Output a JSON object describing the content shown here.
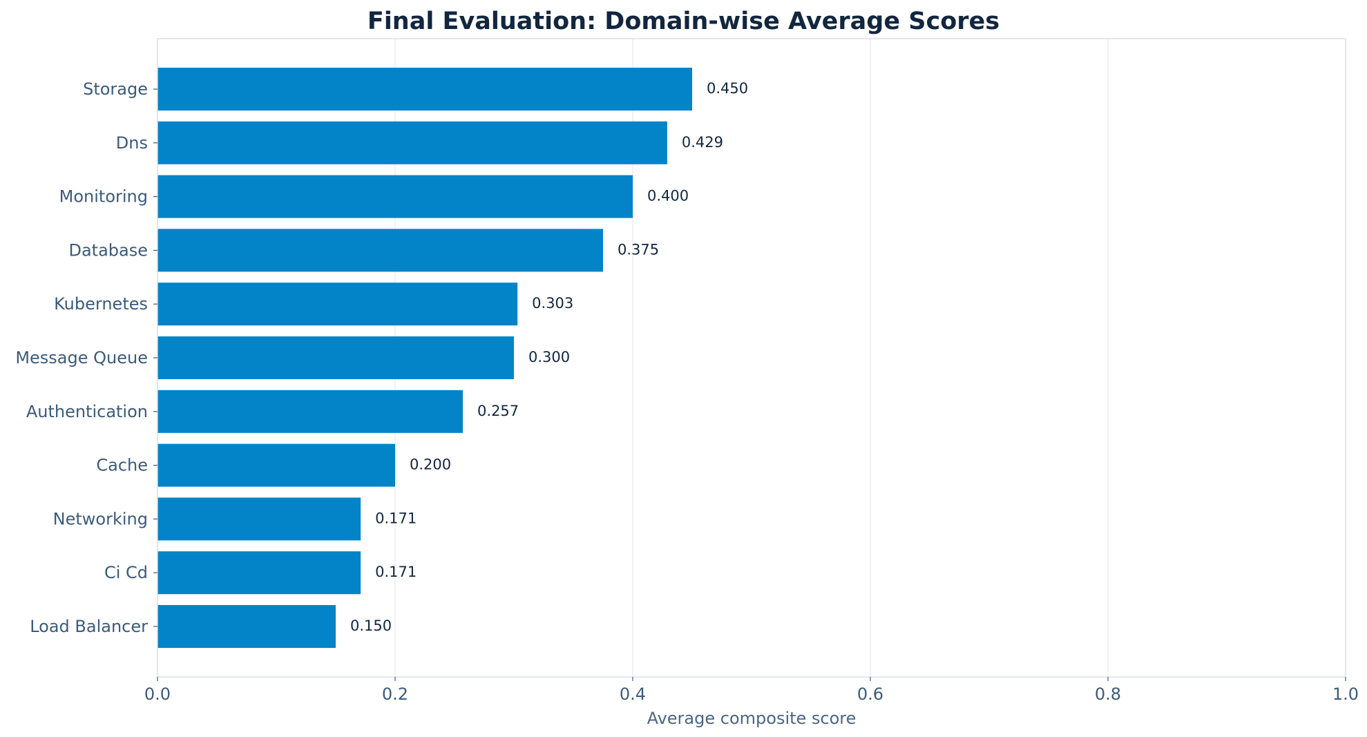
{
  "chart_data": {
    "type": "bar",
    "orientation": "horizontal",
    "title": "Final Evaluation: Domain-wise Average Scores",
    "xlabel": "Average composite score",
    "ylabel": "",
    "xlim": [
      0,
      1
    ],
    "x_ticks": [
      0.0,
      0.2,
      0.4,
      0.6,
      0.8,
      1.0
    ],
    "x_tick_labels": [
      "0.0",
      "0.2",
      "0.4",
      "0.6",
      "0.8",
      "1.0"
    ],
    "grid": "vertical",
    "categories": [
      "Storage",
      "Dns",
      "Monitoring",
      "Database",
      "Kubernetes",
      "Message Queue",
      "Authentication",
      "Cache",
      "Networking",
      "Ci Cd",
      "Load Balancer"
    ],
    "values": [
      0.45,
      0.429,
      0.4,
      0.375,
      0.303,
      0.3,
      0.257,
      0.2,
      0.171,
      0.171,
      0.15
    ],
    "value_labels": [
      "0.450",
      "0.429",
      "0.400",
      "0.375",
      "0.303",
      "0.300",
      "0.257",
      "0.200",
      "0.171",
      "0.171",
      "0.150"
    ],
    "colors": {
      "bar": "#0384c8",
      "title": "#12263f",
      "tick_text": "#3b5b7c",
      "axis_text": "#4a6685",
      "value_text": "#12263f",
      "grid": "#e5e9f0",
      "spine": "#d8dde8"
    }
  }
}
